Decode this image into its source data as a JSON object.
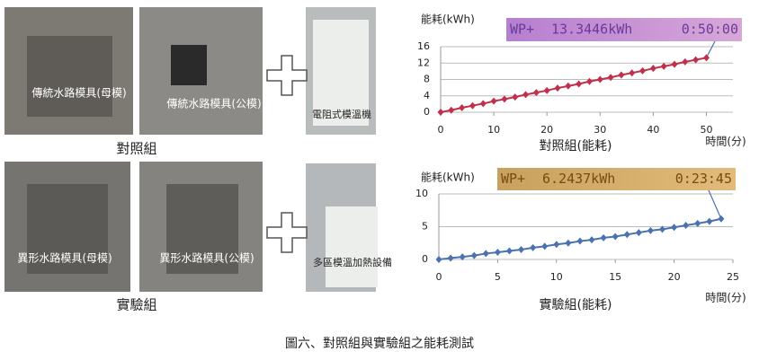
{
  "figure": {
    "control": {
      "mold_female": "傳統水路模具(母模)",
      "mold_male": "傳統水路模具(公模)",
      "heater": "電阻式模溫機",
      "group": "對照組"
    },
    "experiment": {
      "mold_female": "異形水路模具(母模)",
      "mold_male": "異形水路模具(公模)",
      "heater": "多區模溫加熱設備",
      "group": "實驗組"
    },
    "caption": "圖六、對照組與實驗組之能耗測試"
  },
  "chart_data": [
    {
      "type": "line",
      "subtitle": "對照組(能耗)",
      "ylabel": "能耗(kWh)",
      "xlabel": "時間(分)",
      "display": [
        "WP+",
        "13.3446kWh",
        "0:50:00"
      ],
      "x": [
        0,
        2,
        4,
        6,
        8,
        10,
        12,
        14,
        16,
        18,
        20,
        22,
        24,
        26,
        28,
        30,
        32,
        34,
        36,
        38,
        40,
        42,
        44,
        46,
        48,
        50
      ],
      "series": [
        {
          "name": "對照組",
          "color": "#c0304a",
          "values": [
            0,
            0.5,
            1.1,
            1.6,
            2.1,
            2.7,
            3.2,
            3.7,
            4.3,
            4.8,
            5.3,
            5.9,
            6.4,
            6.9,
            7.5,
            8.0,
            8.5,
            9.1,
            9.6,
            10.1,
            10.7,
            11.2,
            11.7,
            12.3,
            12.8,
            13.3
          ]
        }
      ],
      "xlim": [
        0,
        55
      ],
      "xticks": [
        0,
        10,
        20,
        30,
        40,
        50
      ],
      "ylim": [
        0,
        16
      ],
      "yticks": [
        0,
        4,
        8,
        12,
        16
      ],
      "grid": true
    },
    {
      "type": "line",
      "subtitle": "實驗組(能耗)",
      "ylabel": "能耗(kWh)",
      "xlabel": "時間(分)",
      "display": [
        "WP+",
        "6.2437kWh",
        "0:23:45"
      ],
      "x": [
        0,
        1,
        2,
        3,
        4,
        5,
        6,
        7,
        8,
        9,
        10,
        11,
        12,
        13,
        14,
        15,
        16,
        17,
        18,
        19,
        20,
        21,
        22,
        23,
        24
      ],
      "series": [
        {
          "name": "實驗組",
          "color": "#4a72b0",
          "values": [
            0,
            0.2,
            0.4,
            0.6,
            0.9,
            1.1,
            1.3,
            1.5,
            1.8,
            2.0,
            2.3,
            2.5,
            2.8,
            3.0,
            3.3,
            3.5,
            3.8,
            4.1,
            4.4,
            4.6,
            4.9,
            5.2,
            5.5,
            5.8,
            6.2
          ]
        }
      ],
      "xlim": [
        0,
        25
      ],
      "xticks": [
        0,
        5,
        10,
        15,
        20,
        25
      ],
      "ylim": [
        0,
        10
      ],
      "yticks": [
        0,
        5,
        10
      ],
      "grid": true
    }
  ]
}
